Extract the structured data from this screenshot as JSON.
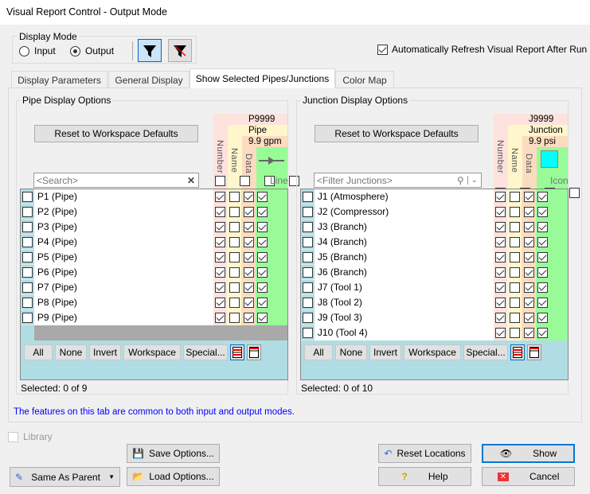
{
  "window": {
    "title": "Visual Report Control - Output Mode"
  },
  "display_mode": {
    "label": "Display Mode",
    "options": [
      {
        "label": "Input",
        "selected": false
      },
      {
        "label": "Output",
        "selected": true
      }
    ]
  },
  "auto_refresh": {
    "label": "Automatically Refresh Visual Report After Run",
    "checked": true
  },
  "tabs": [
    {
      "label": "Display Parameters",
      "active": false
    },
    {
      "label": "General Display",
      "active": false
    },
    {
      "label": "Show Selected Pipes/Junctions",
      "active": true
    },
    {
      "label": "Color Map",
      "active": false
    }
  ],
  "pipes": {
    "group_label": "Pipe Display Options",
    "reset_label": "Reset to Workspace Defaults",
    "search_placeholder": "<Search>",
    "preview": {
      "number": "P9999",
      "name": "Pipe",
      "data": "9.9 gpm"
    },
    "columns": {
      "number": "Number",
      "name": "Name",
      "data": "Data",
      "last": "Line"
    },
    "rows": [
      {
        "label": "P1 (Pipe)",
        "number": true,
        "name": false,
        "data": true,
        "show": true
      },
      {
        "label": "P2 (Pipe)",
        "number": true,
        "name": false,
        "data": true,
        "show": true
      },
      {
        "label": "P3 (Pipe)",
        "number": true,
        "name": false,
        "data": true,
        "show": true
      },
      {
        "label": "P4 (Pipe)",
        "number": true,
        "name": false,
        "data": true,
        "show": true
      },
      {
        "label": "P5 (Pipe)",
        "number": true,
        "name": false,
        "data": true,
        "show": true
      },
      {
        "label": "P6 (Pipe)",
        "number": true,
        "name": false,
        "data": true,
        "show": true
      },
      {
        "label": "P7 (Pipe)",
        "number": true,
        "name": false,
        "data": true,
        "show": true
      },
      {
        "label": "P8 (Pipe)",
        "number": true,
        "name": false,
        "data": true,
        "show": true
      },
      {
        "label": "P9 (Pipe)",
        "number": true,
        "name": false,
        "data": true,
        "show": true
      }
    ],
    "selected": "Selected: 0 of 9"
  },
  "junctions": {
    "group_label": "Junction Display Options",
    "reset_label": "Reset to Workspace Defaults",
    "search_placeholder": "<Filter Junctions>",
    "preview": {
      "number": "J9999",
      "name": "Junction",
      "data": "9.9 psi",
      "icon_color": "#00ffff"
    },
    "columns": {
      "number": "Number",
      "name": "Name",
      "data": "Data",
      "last": "Icon"
    },
    "rows": [
      {
        "label": "J1 (Atmosphere)",
        "number": true,
        "name": false,
        "data": true,
        "show": true
      },
      {
        "label": "J2 (Compressor)",
        "number": true,
        "name": false,
        "data": true,
        "show": true
      },
      {
        "label": "J3 (Branch)",
        "number": true,
        "name": false,
        "data": true,
        "show": true
      },
      {
        "label": "J4 (Branch)",
        "number": true,
        "name": false,
        "data": true,
        "show": true
      },
      {
        "label": "J5 (Branch)",
        "number": true,
        "name": false,
        "data": true,
        "show": true
      },
      {
        "label": "J6 (Branch)",
        "number": true,
        "name": false,
        "data": true,
        "show": true
      },
      {
        "label": "J7 (Tool 1)",
        "number": true,
        "name": false,
        "data": true,
        "show": true
      },
      {
        "label": "J8 (Tool 2)",
        "number": true,
        "name": false,
        "data": true,
        "show": true
      },
      {
        "label": "J9 (Tool 3)",
        "number": true,
        "name": false,
        "data": true,
        "show": true
      },
      {
        "label": "J10 (Tool 4)",
        "number": true,
        "name": false,
        "data": true,
        "show": true
      }
    ],
    "selected": "Selected: 0 of 10"
  },
  "list_buttons": {
    "all": "All",
    "none": "None",
    "invert": "Invert",
    "workspace": "Workspace",
    "special": "Special..."
  },
  "note": "The features on this tab are common to both input and output modes.",
  "library": {
    "label": "Library",
    "checked": false
  },
  "buttons": {
    "same_as_parent": "Same As Parent",
    "save_options": "Save Options...",
    "load_options": "Load Options...",
    "reset_locations": "Reset Locations",
    "help": "Help",
    "show": "Show",
    "cancel": "Cancel"
  },
  "colors": {
    "number_col": "#fde2de",
    "name_col": "#fff6cc",
    "data_col": "#fcdcc0",
    "show_col": "#98fb98",
    "note_text": "#0000ff"
  }
}
